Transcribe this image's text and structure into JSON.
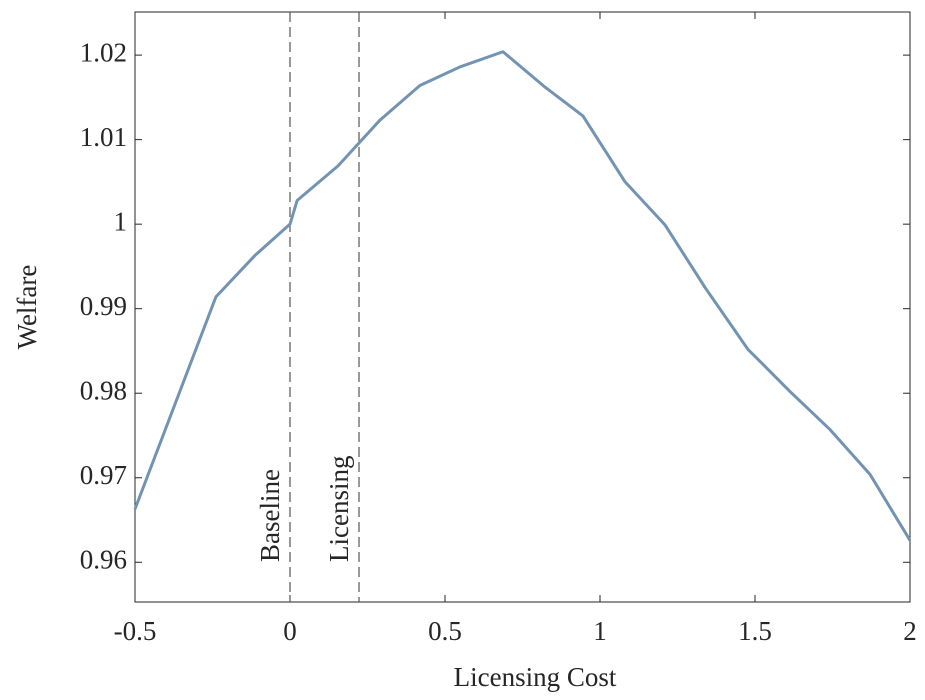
{
  "chart_data": {
    "type": "line",
    "x_label": "Licensing Cost",
    "y_label": "Welfare",
    "x": [
      -0.5,
      -0.239,
      -0.113,
      0,
      0.023,
      0.155,
      0.29,
      0.419,
      0.548,
      0.687,
      0.823,
      0.945,
      1.081,
      1.21,
      1.339,
      1.477,
      1.613,
      1.742,
      1.871,
      2
    ],
    "series": [
      {
        "color": "#7393b3",
        "values": [
          0.9663,
          0.9914,
          0.9963,
          1.0,
          1.0028,
          1.0069,
          1.0123,
          1.0164,
          1.0186,
          1.0204,
          1.0162,
          1.0128,
          1.005,
          0.9999,
          0.9925,
          0.9852,
          0.9802,
          0.9757,
          0.9704,
          0.9626
        ]
      }
    ],
    "xlim": [
      -0.5,
      2
    ],
    "ylim": [
      0.9553,
      1.0251
    ],
    "xticks": [
      -0.5,
      0,
      0.5,
      1,
      1.5,
      2
    ],
    "yticks": [
      0.96,
      0.97,
      0.98,
      0.99,
      1,
      1.01,
      1.02
    ],
    "reference_lines": [
      {
        "x": 0,
        "label": "Baseline"
      },
      {
        "x": 0.2226,
        "label": "Licensing"
      }
    ]
  }
}
